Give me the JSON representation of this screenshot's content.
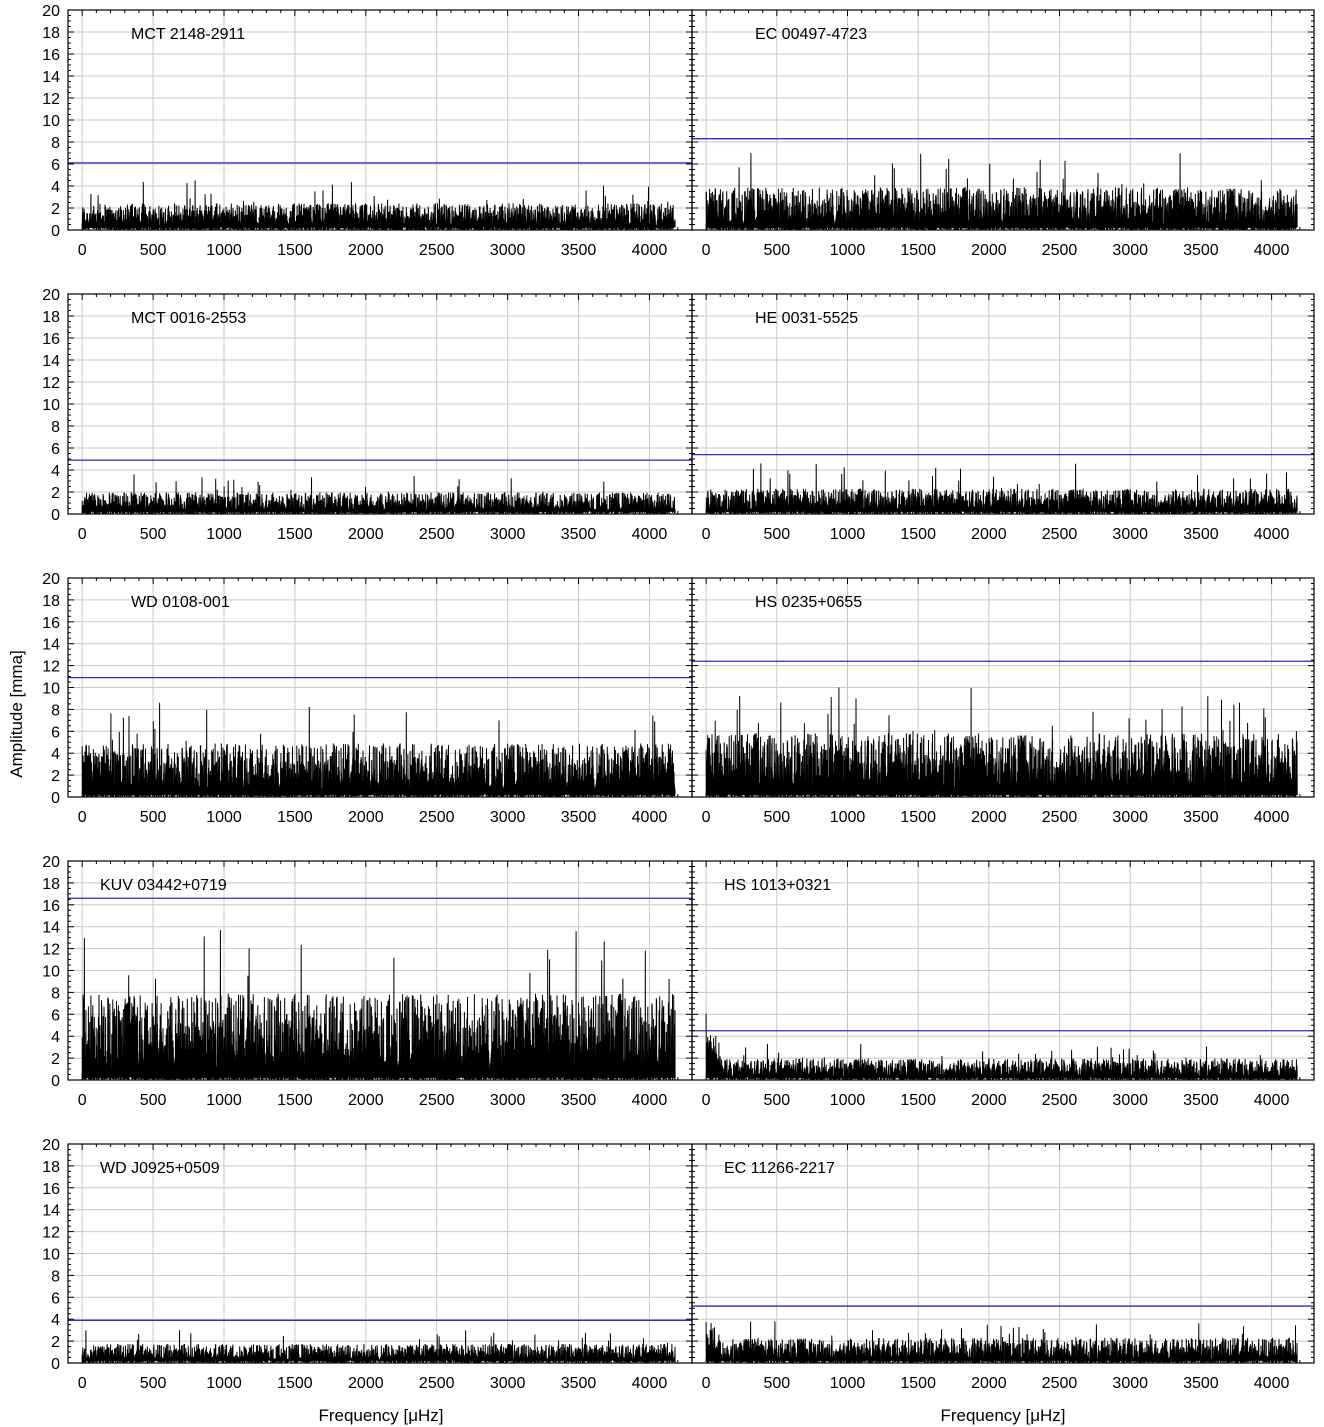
{
  "figure": {
    "xlabel": "Frequency [μHz]",
    "ylabel": "Amplitude [mma]"
  },
  "chart_data": [
    {
      "type": "line",
      "name": "MCT 2148-2911",
      "xlim": [
        -100,
        4300
      ],
      "ylim": [
        0,
        20
      ],
      "threshold": 6.1,
      "noise": {
        "base": 1.1,
        "spread": 1.0,
        "peak": 4.5,
        "low_freq_excess": 0
      },
      "x_max": 4180
    },
    {
      "type": "line",
      "name": "EC 00497-4723",
      "xlim": [
        -100,
        4300
      ],
      "ylim": [
        0,
        20
      ],
      "threshold": 8.3,
      "noise": {
        "base": 1.6,
        "spread": 1.8,
        "peak": 7.0,
        "low_freq_excess": 0
      },
      "x_max": 4180
    },
    {
      "type": "line",
      "name": "MCT 0016-2553",
      "xlim": [
        -100,
        4300
      ],
      "ylim": [
        0,
        20
      ],
      "threshold": 4.9,
      "noise": {
        "base": 0.9,
        "spread": 0.8,
        "peak": 3.6,
        "low_freq_excess": 0
      },
      "x_max": 4180
    },
    {
      "type": "line",
      "name": "HE 0031-5525",
      "xlim": [
        -100,
        4300
      ],
      "ylim": [
        0,
        20
      ],
      "threshold": 5.4,
      "noise": {
        "base": 1.0,
        "spread": 1.0,
        "peak": 4.6,
        "low_freq_excess": 0
      },
      "x_max": 4180
    },
    {
      "type": "line",
      "name": "WD 0108-001",
      "xlim": [
        -100,
        4300
      ],
      "ylim": [
        0,
        20
      ],
      "threshold": 10.9,
      "noise": {
        "base": 2.0,
        "spread": 2.3,
        "peak": 8.6,
        "low_freq_excess": 0
      },
      "x_max": 4180
    },
    {
      "type": "line",
      "name": "HS 0235+0655",
      "xlim": [
        -100,
        4300
      ],
      "ylim": [
        0,
        20
      ],
      "threshold": 12.4,
      "noise": {
        "base": 2.4,
        "spread": 2.7,
        "peak": 10.0,
        "low_freq_excess": 0
      },
      "x_max": 4180
    },
    {
      "type": "line",
      "name": "KUV 03442+0719",
      "xlim": [
        -100,
        4300
      ],
      "ylim": [
        0,
        20
      ],
      "threshold": 16.6,
      "noise": {
        "base": 3.3,
        "spread": 3.6,
        "peak": 13.7,
        "low_freq_excess": 0
      },
      "x_max": 4180
    },
    {
      "type": "line",
      "name": "HS 1013+0321",
      "xlim": [
        -100,
        4300
      ],
      "ylim": [
        0,
        20
      ],
      "threshold": 4.5,
      "noise": {
        "base": 0.9,
        "spread": 0.8,
        "peak": 3.3,
        "low_freq_excess": 3.0
      },
      "x_max": 4180
    },
    {
      "type": "line",
      "name": "WD J0925+0509",
      "xlim": [
        -100,
        4300
      ],
      "ylim": [
        0,
        20
      ],
      "threshold": 3.9,
      "noise": {
        "base": 0.8,
        "spread": 0.7,
        "peak": 3.0,
        "low_freq_excess": 0
      },
      "x_max": 4180
    },
    {
      "type": "line",
      "name": "EC 11266-2217",
      "xlim": [
        -100,
        4300
      ],
      "ylim": [
        0,
        20
      ],
      "threshold": 5.2,
      "noise": {
        "base": 1.0,
        "spread": 1.0,
        "peak": 3.8,
        "low_freq_excess": 1.8
      },
      "x_max": 4180
    }
  ],
  "axes": {
    "xticks": [
      0,
      500,
      1000,
      1500,
      2000,
      2500,
      3000,
      3500,
      4000
    ],
    "yticks": [
      0,
      2,
      4,
      6,
      8,
      10,
      12,
      14,
      16,
      18,
      20
    ]
  },
  "colors": {
    "threshold": "#2a2ad0",
    "signal": "#000000",
    "grid": "#c8c8c8"
  }
}
